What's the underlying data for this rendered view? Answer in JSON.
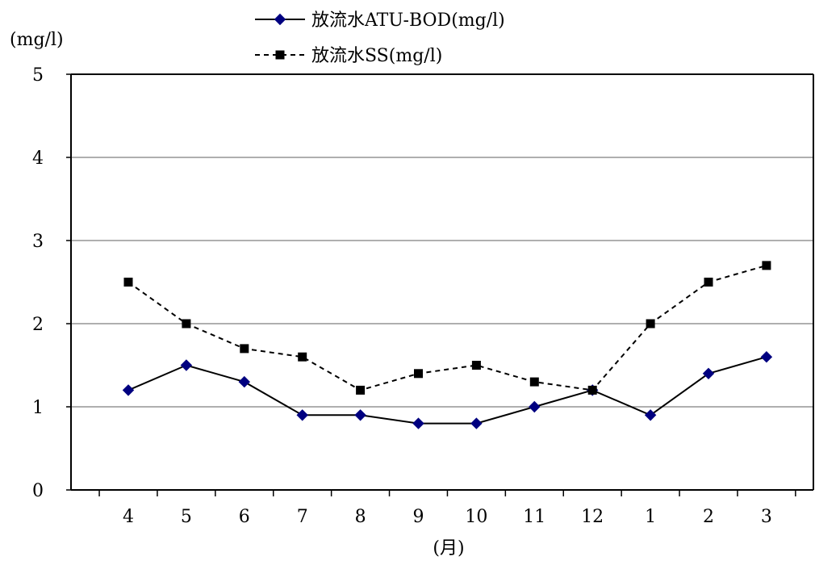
{
  "chart_data": {
    "type": "line",
    "categories": [
      "4",
      "5",
      "6",
      "7",
      "8",
      "9",
      "10",
      "11",
      "12",
      "1",
      "2",
      "3"
    ],
    "series": [
      {
        "name": "放流水ATU-BOD(mg/l)",
        "values": [
          1.2,
          1.5,
          1.3,
          0.9,
          0.9,
          0.8,
          0.8,
          1.0,
          1.2,
          0.9,
          1.4,
          1.6
        ],
        "color": "#000080",
        "marker": "diamond",
        "line_style": "solid"
      },
      {
        "name": "放流水SS(mg/l)",
        "values": [
          2.5,
          2.0,
          1.7,
          1.6,
          1.2,
          1.4,
          1.5,
          1.3,
          1.2,
          2.0,
          2.5,
          2.7
        ],
        "color": "#000000",
        "marker": "square",
        "line_style": "dashed"
      }
    ],
    "ylabel": "(mg/l)",
    "xlabel": "(月)",
    "ylim": [
      0,
      5
    ],
    "yticks": [
      "0",
      "1",
      "2",
      "3",
      "4",
      "5"
    ],
    "grid": true,
    "legend_position": "top-center"
  }
}
